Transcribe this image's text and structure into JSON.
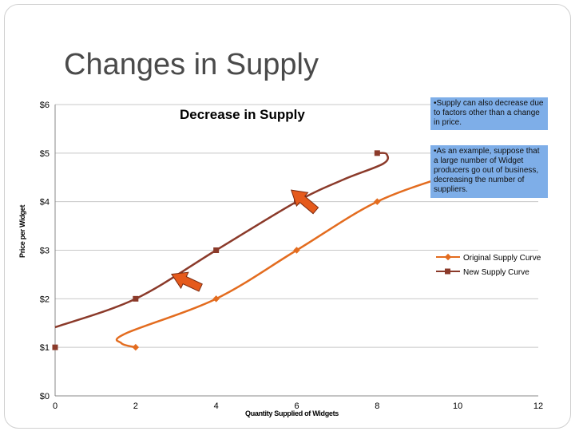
{
  "slide": {
    "title": "Changes in Supply",
    "notes": [
      "•Supply can also decrease due to factors other than a change in price.",
      "•As an example, suppose that a large number of Widget producers go out of business, decreasing the number of suppliers."
    ]
  },
  "colors": {
    "original": "#e36c1f",
    "new": "#8b3a2a",
    "arrow": "#e55a1c",
    "note_bg": "#7eaee8",
    "grid": "#c8c8c8"
  },
  "chart_data": {
    "type": "line",
    "title": "Decrease in Supply",
    "xlabel": "Quantity Supplied of Widgets",
    "ylabel": "Price per Widget",
    "xlim": [
      0,
      12
    ],
    "ylim": [
      0,
      6
    ],
    "x_ticks": [
      "0",
      "2",
      "4",
      "6",
      "8",
      "10",
      "12"
    ],
    "y_ticks": [
      "$0",
      "$1",
      "$2",
      "$3",
      "$4",
      "$5",
      "$6"
    ],
    "grid": true,
    "legend_position": "right",
    "series": [
      {
        "name": "Original Supply Curve",
        "points": [
          [
            2,
            1
          ],
          [
            4,
            2
          ],
          [
            6,
            3
          ],
          [
            8,
            4
          ],
          [
            10,
            4.6
          ]
        ]
      },
      {
        "name": "New Supply Curve",
        "points": [
          [
            0,
            1
          ],
          [
            2,
            2
          ],
          [
            4,
            3
          ],
          [
            6,
            4
          ],
          [
            8,
            5
          ]
        ]
      }
    ]
  }
}
